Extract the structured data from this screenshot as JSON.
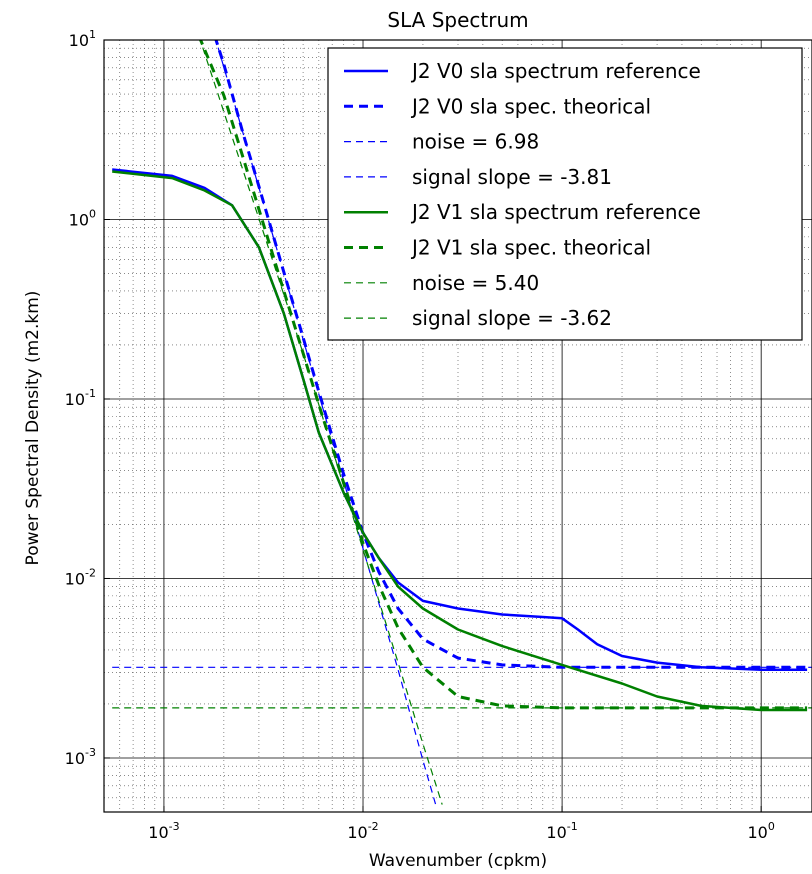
{
  "chart_data": {
    "type": "line",
    "title": "SLA Spectrum",
    "xlabel": "Wavenumber (cpkm)",
    "ylabel": "Power Spectral Density (m2.km)",
    "x_scale": "log",
    "y_scale": "log",
    "xlim": [
      0.0005,
      1.8
    ],
    "ylim": [
      0.0005,
      10
    ],
    "grid": true,
    "legend_position": "top-right",
    "x_ticks": [
      {
        "value": 0.001,
        "base": "10",
        "exp": "-3"
      },
      {
        "value": 0.01,
        "base": "10",
        "exp": "-2"
      },
      {
        "value": 0.1,
        "base": "10",
        "exp": "-1"
      },
      {
        "value": 1,
        "base": "10",
        "exp": "0"
      }
    ],
    "y_ticks": [
      {
        "value": 0.001,
        "base": "10",
        "exp": "-3"
      },
      {
        "value": 0.01,
        "base": "10",
        "exp": "-2"
      },
      {
        "value": 0.1,
        "base": "10",
        "exp": "-1"
      },
      {
        "value": 1,
        "base": "10",
        "exp": "0"
      },
      {
        "value": 10,
        "base": "10",
        "exp": "1"
      }
    ],
    "series": [
      {
        "name": "J2 V0 sla spectrum reference",
        "color": "#0000ff",
        "style": "solid",
        "width": 2.5,
        "x": [
          0.00055,
          0.0011,
          0.0016,
          0.0022,
          0.003,
          0.004,
          0.005,
          0.006,
          0.008,
          0.01,
          0.012,
          0.015,
          0.02,
          0.03,
          0.05,
          0.08,
          0.1,
          0.12,
          0.15,
          0.2,
          0.3,
          0.5,
          1.0,
          1.7
        ],
        "y": [
          1.9,
          1.75,
          1.5,
          1.2,
          0.7,
          0.3,
          0.13,
          0.065,
          0.03,
          0.018,
          0.013,
          0.0095,
          0.0075,
          0.0068,
          0.0063,
          0.0061,
          0.006,
          0.0052,
          0.0043,
          0.0037,
          0.0034,
          0.0032,
          0.0031,
          0.0031
        ]
      },
      {
        "name": "J2 V0 sla spec. theorical",
        "color": "#0000ff",
        "style": "dashed",
        "width": 3,
        "x": [
          0.0018,
          0.002,
          0.0025,
          0.003,
          0.004,
          0.005,
          0.006,
          0.008,
          0.01,
          0.012,
          0.015,
          0.02,
          0.03,
          0.05,
          0.1,
          0.5,
          1.7
        ],
        "y": [
          10.5,
          7.3,
          3.0,
          1.53,
          0.51,
          0.22,
          0.11,
          0.038,
          0.0179,
          0.0109,
          0.0068,
          0.0046,
          0.0036,
          0.0033,
          0.0032,
          0.0032,
          0.0032
        ]
      },
      {
        "name": "noise = 6.98",
        "color": "#0000ff",
        "style": "thin-dashed",
        "width": 1.2,
        "x": [
          0.00055,
          1.8
        ],
        "y": [
          0.0032,
          0.0032
        ]
      },
      {
        "name": "signal slope = -3.81",
        "color": "#0000ff",
        "style": "thin-dashed",
        "width": 1.2,
        "x": [
          0.0018,
          0.005,
          0.01,
          0.015,
          0.02,
          0.0235
        ],
        "y": [
          10.5,
          0.215,
          0.0147,
          0.0031,
          0.00097,
          0.00052
        ]
      },
      {
        "name": "J2 V1 sla spectrum reference",
        "color": "#008000",
        "style": "solid",
        "width": 2.5,
        "x": [
          0.00055,
          0.0011,
          0.0016,
          0.0022,
          0.003,
          0.004,
          0.005,
          0.006,
          0.008,
          0.01,
          0.012,
          0.015,
          0.02,
          0.03,
          0.05,
          0.1,
          0.2,
          0.3,
          0.5,
          1.0,
          1.7
        ],
        "y": [
          1.85,
          1.7,
          1.45,
          1.2,
          0.7,
          0.3,
          0.13,
          0.065,
          0.03,
          0.018,
          0.013,
          0.009,
          0.0068,
          0.0052,
          0.0042,
          0.0033,
          0.0026,
          0.0022,
          0.00195,
          0.00185,
          0.00185
        ]
      },
      {
        "name": "J2 V1 sla spec. theorical",
        "color": "#008000",
        "style": "dashed",
        "width": 3,
        "x": [
          0.0015,
          0.002,
          0.0025,
          0.003,
          0.004,
          0.005,
          0.006,
          0.008,
          0.01,
          0.012,
          0.015,
          0.02,
          0.03,
          0.05,
          0.1,
          0.5,
          1.7
        ],
        "y": [
          10.5,
          4.9,
          2.2,
          1.14,
          0.4,
          0.18,
          0.093,
          0.034,
          0.0157,
          0.0092,
          0.0053,
          0.0032,
          0.0022,
          0.00195,
          0.0019,
          0.0019,
          0.0019
        ]
      },
      {
        "name": "noise = 5.40",
        "color": "#008000",
        "style": "thin-dashed",
        "width": 1.2,
        "x": [
          0.00055,
          1.8
        ],
        "y": [
          0.0019,
          0.0019
        ]
      },
      {
        "name": "signal slope = -3.62",
        "color": "#008000",
        "style": "thin-dashed",
        "width": 1.2,
        "x": [
          0.0015,
          0.005,
          0.01,
          0.015,
          0.02,
          0.025
        ],
        "y": [
          10.5,
          0.18,
          0.0145,
          0.0034,
          0.0012,
          0.00055
        ]
      }
    ]
  }
}
